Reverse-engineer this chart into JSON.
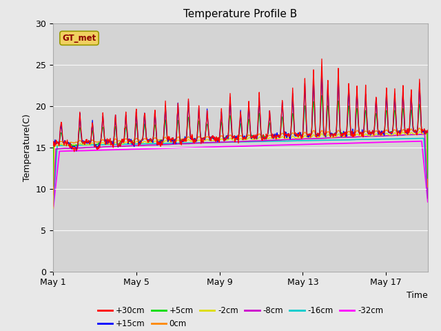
{
  "title": "Temperature Profile B",
  "xlabel": "Time",
  "ylabel": "Temperature(C)",
  "annotation": "GT_met",
  "ylim": [
    0,
    30
  ],
  "xlim_days": [
    0,
    18
  ],
  "xticks": [
    0,
    4,
    8,
    12,
    16
  ],
  "xtick_labels": [
    "May 1",
    "May 5",
    "May 9",
    "May 13",
    "May 17"
  ],
  "yticks": [
    0,
    5,
    10,
    15,
    20,
    25,
    30
  ],
  "series_colors": {
    "+30cm": "#ff0000",
    "+15cm": "#0000ff",
    "+5cm": "#00dd00",
    "0cm": "#ff8800",
    "-2cm": "#dddd00",
    "-8cm": "#cc00cc",
    "-16cm": "#00cccc",
    "-32cm": "#ff00ff"
  },
  "fig_bg_color": "#e8e8e8",
  "plot_bg_color": "#d4d4d4",
  "title_fontsize": 11,
  "label_fontsize": 9,
  "tick_fontsize": 9
}
